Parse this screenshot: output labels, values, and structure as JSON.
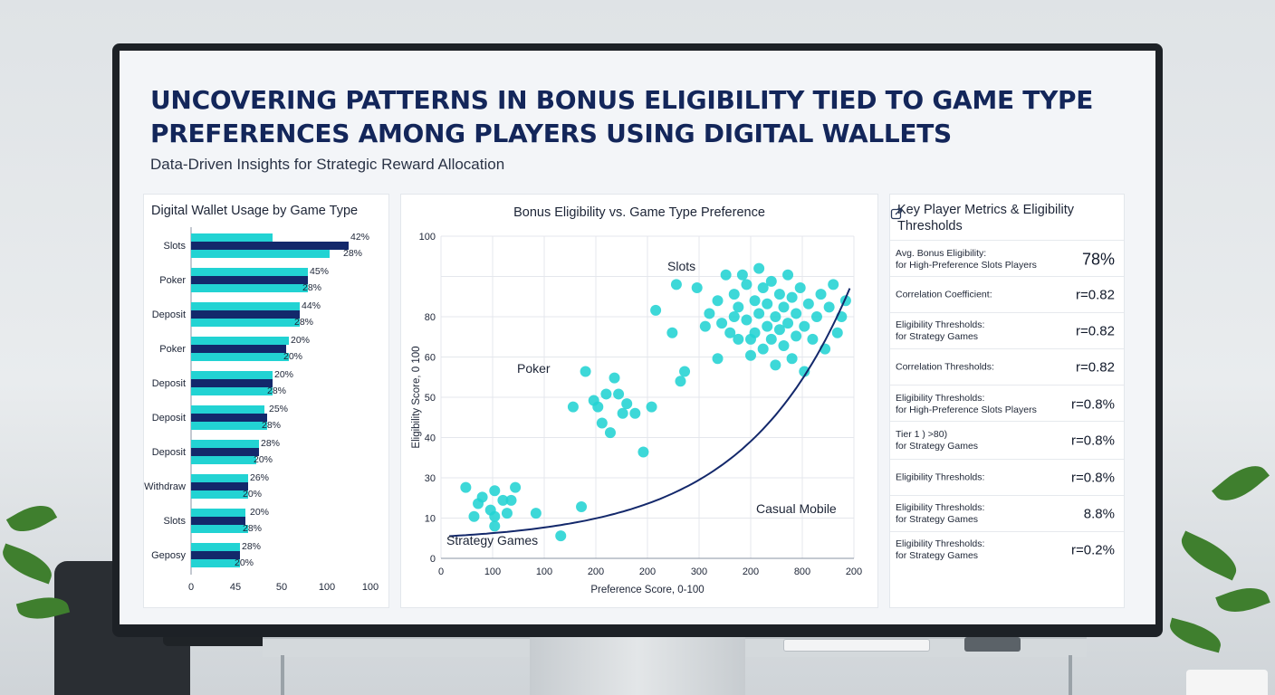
{
  "dashboard": {
    "title_line1": "UNCOVERING PATTERNS IN BONUS ELIGIBILITY TIED TO GAME TYPE",
    "title_line2": "PREFERENCES AMONG PLAYERS USING DIGITAL WALLETS",
    "subtitle": "Data-Driven Insights for Strategic Reward Allocation"
  },
  "colors": {
    "accent_teal": "#22d3d3",
    "navy": "#13286b",
    "title": "#13265a"
  },
  "chart_data": [
    {
      "type": "bar",
      "title": "Digital Wallet Usage by Game Type",
      "orientation": "horizontal",
      "categories": [
        "Slots",
        "Poker",
        "Deposit",
        "Poker",
        "Deposit",
        "Deposit",
        "Deposit",
        "Withdraw",
        "Slots",
        "Geposy"
      ],
      "x_ticks": [
        "0",
        "45",
        "50",
        "100",
        "100"
      ],
      "series": [
        {
          "values": [
            30,
            43,
            40,
            36,
            30,
            27,
            25,
            21,
            20,
            18
          ]
        },
        {
          "values": [
            58,
            43,
            40,
            35,
            30,
            28,
            25,
            21,
            20,
            18
          ]
        },
        {
          "values": [
            51,
            43,
            40,
            36,
            30,
            28,
            24,
            21,
            21,
            18
          ]
        }
      ],
      "data_labels": [
        [
          "42%",
          "28%"
        ],
        [
          "45%",
          "28%"
        ],
        [
          "44%",
          "28%"
        ],
        [
          "20%",
          "20%"
        ],
        [
          "20%",
          "28%"
        ],
        [
          "25%",
          "28%"
        ],
        [
          "28%",
          "20%"
        ],
        [
          "26%",
          "20%"
        ],
        [
          "20%",
          "28%"
        ],
        [
          "28%",
          "20%"
        ]
      ]
    },
    {
      "type": "scatter",
      "title": "Bonus Eligibility vs. Game Type Preference",
      "xlabel": "Preference Score, 0-100",
      "ylabel": "Eligibility Score, 0 100",
      "x_ticks": [
        "0",
        "100",
        "100",
        "200",
        "200",
        "300",
        "200",
        "800",
        "200"
      ],
      "y_ticks": [
        "0",
        "10",
        "30",
        "40",
        "50",
        "60",
        "80",
        "100"
      ],
      "grid": true,
      "annotations": [
        "Slots",
        "Poker",
        "Strategy Games",
        "Casual Mobile"
      ],
      "points": [
        [
          6,
          22
        ],
        [
          8,
          13
        ],
        [
          9,
          17
        ],
        [
          10,
          19
        ],
        [
          12,
          15
        ],
        [
          13,
          10
        ],
        [
          13,
          13
        ],
        [
          13,
          21
        ],
        [
          15,
          18
        ],
        [
          16,
          14
        ],
        [
          17,
          18
        ],
        [
          18,
          22
        ],
        [
          23,
          14
        ],
        [
          29,
          7
        ],
        [
          32,
          47
        ],
        [
          34,
          16
        ],
        [
          35,
          58
        ],
        [
          37,
          49
        ],
        [
          38,
          47
        ],
        [
          39,
          42
        ],
        [
          40,
          51
        ],
        [
          41,
          39
        ],
        [
          42,
          56
        ],
        [
          43,
          51
        ],
        [
          44,
          45
        ],
        [
          45,
          48
        ],
        [
          47,
          45
        ],
        [
          49,
          33
        ],
        [
          51,
          47
        ],
        [
          52,
          77
        ],
        [
          56,
          70
        ],
        [
          57,
          85
        ],
        [
          58,
          55
        ],
        [
          59,
          58
        ],
        [
          62,
          84
        ],
        [
          64,
          72
        ],
        [
          65,
          76
        ],
        [
          67,
          80
        ],
        [
          67,
          62
        ],
        [
          68,
          73
        ],
        [
          69,
          88
        ],
        [
          70,
          70
        ],
        [
          71,
          75
        ],
        [
          71,
          82
        ],
        [
          72,
          68
        ],
        [
          72,
          78
        ],
        [
          73,
          88
        ],
        [
          74,
          85
        ],
        [
          74,
          74
        ],
        [
          75,
          68
        ],
        [
          75,
          63
        ],
        [
          76,
          80
        ],
        [
          76,
          70
        ],
        [
          77,
          90
        ],
        [
          77,
          76
        ],
        [
          78,
          65
        ],
        [
          78,
          84
        ],
        [
          79,
          72
        ],
        [
          79,
          79
        ],
        [
          80,
          68
        ],
        [
          80,
          86
        ],
        [
          81,
          75
        ],
        [
          81,
          60
        ],
        [
          82,
          82
        ],
        [
          82,
          71
        ],
        [
          83,
          66
        ],
        [
          83,
          78
        ],
        [
          84,
          88
        ],
        [
          84,
          73
        ],
        [
          85,
          62
        ],
        [
          85,
          81
        ],
        [
          86,
          69
        ],
        [
          86,
          76
        ],
        [
          87,
          84
        ],
        [
          88,
          72
        ],
        [
          88,
          58
        ],
        [
          89,
          79
        ],
        [
          90,
          68
        ],
        [
          91,
          75
        ],
        [
          92,
          82
        ],
        [
          93,
          65
        ],
        [
          94,
          78
        ],
        [
          95,
          85
        ],
        [
          96,
          70
        ],
        [
          97,
          75
        ],
        [
          98,
          80
        ]
      ],
      "trend": "exponential"
    }
  ],
  "metrics": {
    "heading": "Key Player Metrics & Eligibility Thresholds",
    "rows": [
      {
        "label": "Avg. Bonus Eligibility:",
        "sublabel": "for High-Preference Slots Players",
        "value": "78%"
      },
      {
        "label": "Correlation Coefficient:",
        "sublabel": "",
        "value": "r=0.82"
      },
      {
        "label": "Eligibility Thresholds:",
        "sublabel": "for Strategy Games",
        "value": "r=0.82"
      },
      {
        "label": "Correlation Thresholds:",
        "sublabel": "",
        "value": "r=0.82"
      },
      {
        "label": "Eligibility Thresholds:",
        "sublabel": "for High-Preference Slots Players",
        "value": "r=0.8%"
      },
      {
        "label": "Tier 1 ) >80)",
        "sublabel": "for Strategy Games",
        "value": "r=0.8%"
      },
      {
        "label": "Eligibility Thresholds:",
        "sublabel": "",
        "value": "r=0.8%"
      },
      {
        "label": "Eligibility Thresholds:",
        "sublabel": "for Strategy Games",
        "value": "8.8%"
      },
      {
        "label": "Eligibility Thresholds:",
        "sublabel": "for Strategy Games",
        "value": "r=0.2%"
      }
    ]
  }
}
